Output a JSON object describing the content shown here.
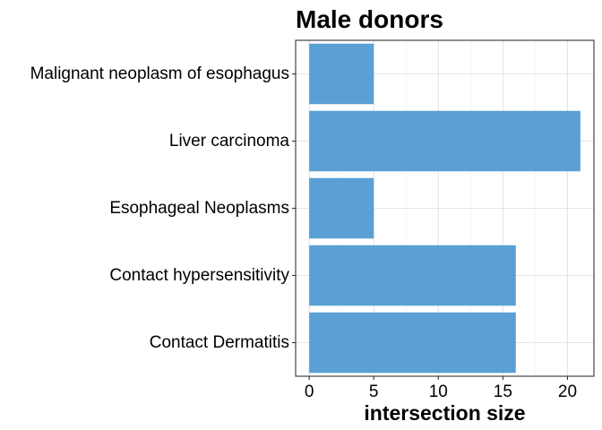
{
  "chart_data": {
    "type": "bar",
    "orientation": "horizontal",
    "title": "Male donors",
    "xlabel": "intersection size",
    "ylabel": "",
    "categories": [
      "Malignant neoplasm of esophagus",
      "Liver carcinoma",
      "Esophageal Neoplasms",
      "Contact hypersensitivity",
      "Contact Dermatitis"
    ],
    "values": [
      5,
      21,
      5,
      16,
      16
    ],
    "xlim": [
      -1.05,
      22.05
    ],
    "xticks": [
      0,
      5,
      10,
      15,
      20
    ],
    "grid": true,
    "legend": "none",
    "bar_color": "#5aa0d4"
  }
}
